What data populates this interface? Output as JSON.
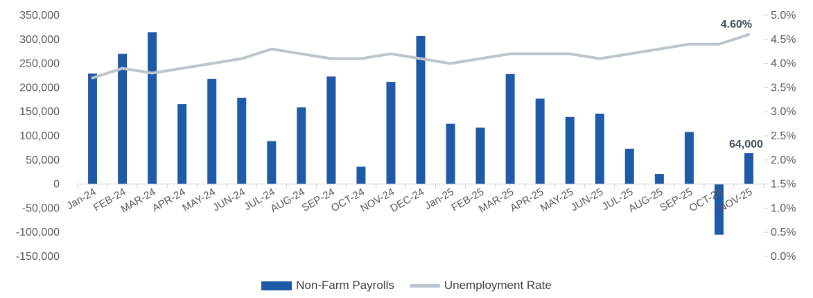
{
  "chart_data": {
    "type": "bar",
    "categories": [
      "Jan-24",
      "FEB-24",
      "MAR-24",
      "APR-24",
      "MAY-24",
      "JUN-24",
      "JUL-24",
      "AUG-24",
      "SEP-24",
      "OCT-24",
      "NOV-24",
      "DEC-24",
      "Jan-25",
      "FEB-25",
      "MAR-25",
      "APR-25",
      "MAY-25",
      "JUN-25",
      "JUL-25",
      "AUG-25",
      "SEP-25",
      "OCT-25",
      "NOV-25"
    ],
    "series": [
      {
        "name": "Non-Farm Payrolls",
        "type": "bar",
        "axis": "left",
        "color": "#1f5aa8",
        "values": [
          229000,
          270000,
          315000,
          166000,
          218000,
          179000,
          89000,
          159000,
          223000,
          36000,
          212000,
          307000,
          125000,
          117000,
          228000,
          177000,
          139000,
          146000,
          73000,
          21000,
          108000,
          -105000,
          64000
        ]
      },
      {
        "name": "Unemployment Rate",
        "type": "line",
        "axis": "right",
        "color": "#bcc4cc",
        "values": [
          3.7,
          3.9,
          3.8,
          3.9,
          4.0,
          4.1,
          4.3,
          4.2,
          4.1,
          4.1,
          4.2,
          4.1,
          4.0,
          4.1,
          4.2,
          4.2,
          4.2,
          4.1,
          4.2,
          4.3,
          4.4,
          4.4,
          4.6
        ]
      }
    ],
    "y_left": {
      "lim": [
        -150000,
        350000
      ],
      "ticks": [
        "-150,000",
        "-100,000",
        "-50,000",
        "0",
        "50,000",
        "100,000",
        "150,000",
        "200,000",
        "250,000",
        "300,000",
        "350,000"
      ]
    },
    "y_right": {
      "lim": [
        0,
        5
      ],
      "ticks": [
        "0.0%",
        "0.5%",
        "1.0%",
        "1.5%",
        "2.0%",
        "2.5%",
        "3.0%",
        "3.5%",
        "4.0%",
        "4.5%",
        "5.0%"
      ]
    },
    "annotations": {
      "bar_last": "64,000",
      "line_last": "4.60%"
    },
    "grid": false,
    "legend_position": "bottom"
  }
}
